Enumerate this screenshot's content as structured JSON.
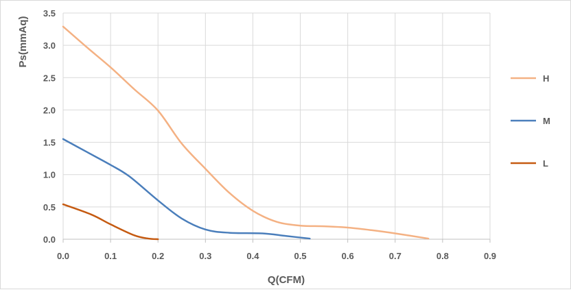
{
  "chart_data": {
    "type": "line",
    "title": "",
    "xlabel": "Q(CFM)",
    "ylabel": "Ps(mmAq)",
    "xlim": [
      0,
      0.9
    ],
    "ylim": [
      0,
      3.5
    ],
    "x_ticks": [
      "0.0",
      "0.1",
      "0.2",
      "0.3",
      "0.4",
      "0.5",
      "0.6",
      "0.7",
      "0.8",
      "0.9"
    ],
    "y_ticks": [
      "0.0",
      "0.5",
      "1.0",
      "1.5",
      "2.0",
      "2.5",
      "3.0",
      "3.5"
    ],
    "grid": true,
    "legend_position": "right",
    "series": [
      {
        "name": "H",
        "color": "#f4b183",
        "points": [
          [
            0.0,
            3.29
          ],
          [
            0.05,
            2.97
          ],
          [
            0.1,
            2.66
          ],
          [
            0.15,
            2.32
          ],
          [
            0.2,
            1.99
          ],
          [
            0.25,
            1.48
          ],
          [
            0.3,
            1.09
          ],
          [
            0.35,
            0.72
          ],
          [
            0.4,
            0.44
          ],
          [
            0.45,
            0.27
          ],
          [
            0.5,
            0.21
          ],
          [
            0.55,
            0.2
          ],
          [
            0.6,
            0.18
          ],
          [
            0.65,
            0.14
          ],
          [
            0.7,
            0.09
          ],
          [
            0.77,
            0.01
          ]
        ]
      },
      {
        "name": "M",
        "color": "#4a7ebb",
        "points": [
          [
            0.0,
            1.55
          ],
          [
            0.05,
            1.35
          ],
          [
            0.1,
            1.15
          ],
          [
            0.14,
            0.97
          ],
          [
            0.2,
            0.6
          ],
          [
            0.25,
            0.32
          ],
          [
            0.3,
            0.15
          ],
          [
            0.35,
            0.1
          ],
          [
            0.42,
            0.09
          ],
          [
            0.47,
            0.05
          ],
          [
            0.52,
            0.01
          ]
        ]
      },
      {
        "name": "L",
        "color": "#c55a11",
        "points": [
          [
            0.0,
            0.54
          ],
          [
            0.06,
            0.38
          ],
          [
            0.1,
            0.23
          ],
          [
            0.15,
            0.06
          ],
          [
            0.18,
            0.01
          ],
          [
            0.2,
            0.0
          ]
        ]
      }
    ]
  }
}
